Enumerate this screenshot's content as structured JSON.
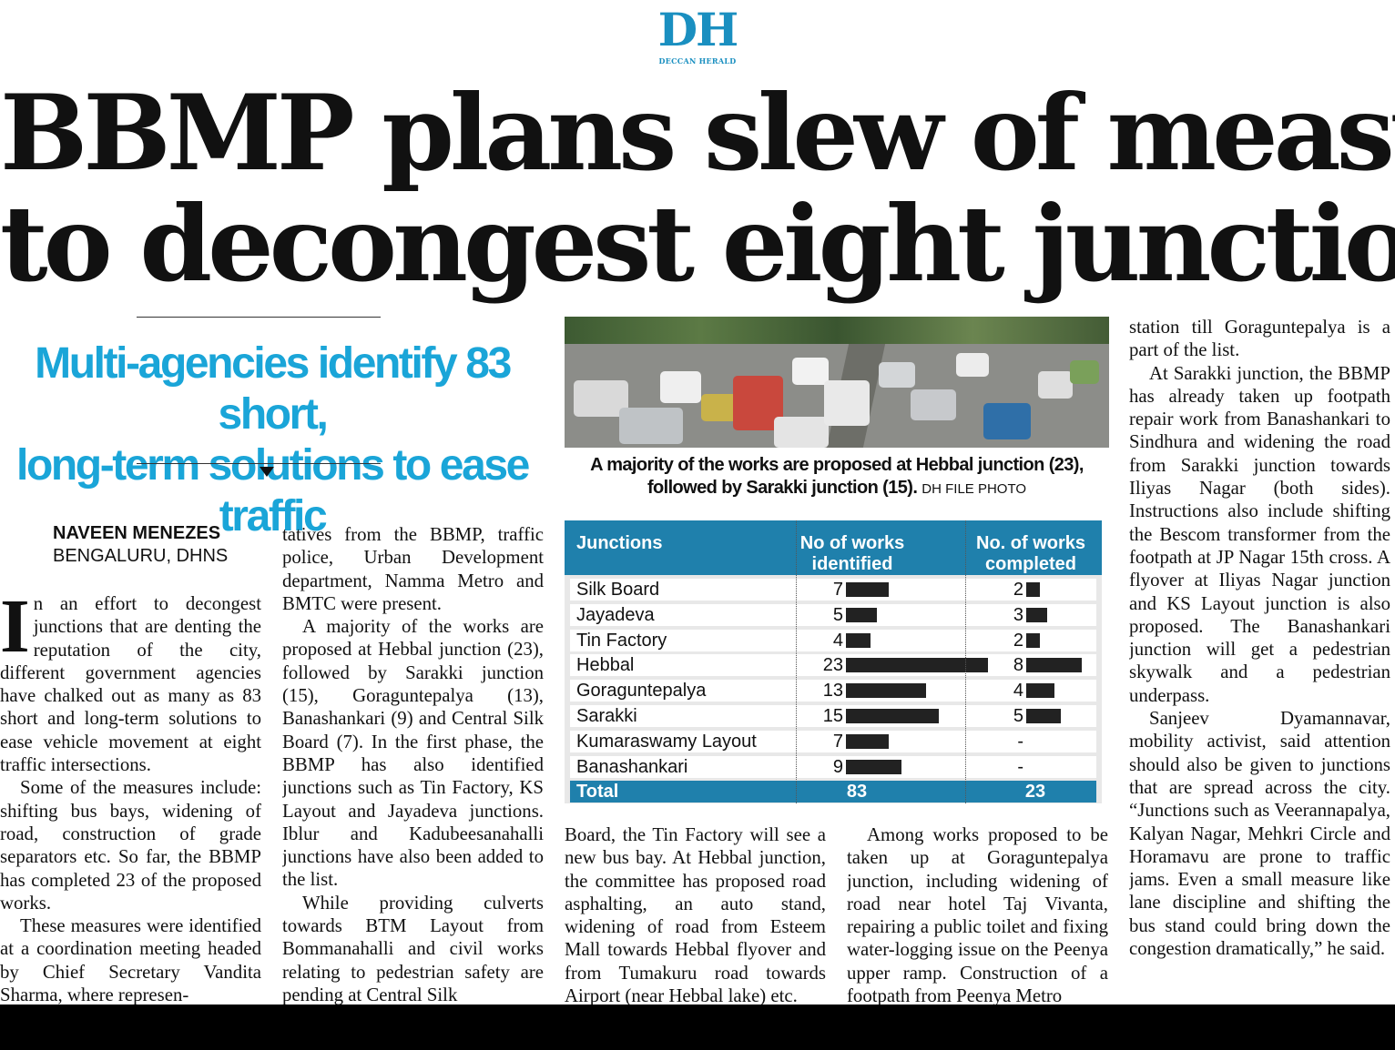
{
  "masthead": {
    "logo": "DH",
    "logo_sub": "DECCAN HERALD"
  },
  "headline": {
    "line1": "BBMP plans slew of measures",
    "line2": "to decongest eight junctions"
  },
  "subhead": {
    "line1": "Multi-agencies identify 83 short,",
    "line2": "long-term solutions to ease traffic"
  },
  "photo": {
    "caption_line1": "A majority of the works are proposed at Hebbal junction (23),",
    "caption_line2": "followed by Sarakki junction (15).",
    "credit": "DH FILE PHOTO"
  },
  "byline": {
    "name": "NAVEEN MENEZES",
    "place": "BENGALURU, DHNS"
  },
  "article": {
    "col1": {
      "dropcap": "I",
      "p1": "n an effort to decongest junctions that are denting the reputation of the city, different government agencies have chalked out as many as 83 short and long-term solutions to ease vehicle movement at eight traffic intersections.",
      "p2": "Some of the measures include: shifting bus bays, widening of road, construction of grade separators etc. So far, the BBMP has completed 23 of the proposed works.",
      "p3": "These measures were identified at a coordination meeting headed by Chief Secretary Vandita Sharma, where represen-"
    },
    "col2": {
      "p1": "tatives from the BBMP, traffic police, Urban Development department, Namma Metro and BMTC were present.",
      "p2": "A majority of the works are proposed at Hebbal junction (23), followed by Sarakki junction (15), Goraguntepalya (13), Banashankari (9) and Central Silk Board (7). In the first phase, the BBMP has also identified junctions such as Tin Factory, KS Layout and Jayadeva junctions. Iblur and Kadubeesanahalli junctions have also been added to the list.",
      "p3": "While providing culverts towards BTM Layout from Bommanahalli and civil works relating to pedestrian safety are pending at Central Silk"
    },
    "col3": {
      "p1": "Board, the Tin Factory will see a new bus bay. At Hebbal junction, the committee has proposed road asphalting, an auto stand, widening of road from Esteem Mall towards Hebbal flyover and from Tumakuru road towards Airport (near Hebbal lake) etc."
    },
    "col4": {
      "p1": "Among works proposed to be taken up at Goraguntepalya junction, including widening of road near hotel Taj Vivanta, repairing a public toilet and fixing water-logging issue on the Peenya upper ramp. Construction of a footpath from Peenya Metro"
    },
    "col5": {
      "p1": "station till Goraguntepalya is a part of the list.",
      "p2": "At Sarakki junction, the BBMP has already taken up footpath repair work from Banashankari to Sindhura and widening the road from Sarakki junction towards Iliyas Nagar (both sides). Instructions also include shifting the Bescom transformer from the footpath at JP Nagar 15th cross. A flyover at Iliyas Nagar junction and KS Layout junction is also proposed. The Banashankari junction will get a pedestrian skywalk and a pedestrian underpass.",
      "p3": "Sanjeev Dyamannavar, mobility activist, said attention should also be given to junctions that are spread across the city. “Junctions such as Veerannapalya, Kalyan Nagar, Mehkri Circle and Horamavu are prone to traffic jams. Even a small measure like lane discipline and shifting the bus stand could bring down the congestion dramatically,” he said."
    }
  },
  "table": {
    "headers": {
      "junctions": "Junctions",
      "identified_l1": "No of works",
      "identified_l2": "identified",
      "completed_l1": "No. of works",
      "completed_l2": "completed"
    },
    "rows": [
      {
        "name": "Silk Board",
        "identified": "7",
        "completed": "2"
      },
      {
        "name": "Jayadeva",
        "identified": "5",
        "completed": "3"
      },
      {
        "name": "Tin Factory",
        "identified": "4",
        "completed": "2"
      },
      {
        "name": "Hebbal",
        "identified": "23",
        "completed": "8"
      },
      {
        "name": "Goraguntepalya",
        "identified": "13",
        "completed": "4"
      },
      {
        "name": "Sarakki",
        "identified": "15",
        "completed": "5"
      },
      {
        "name": "Kumaraswamy Layout",
        "identified": "7",
        "completed": "-"
      },
      {
        "name": "Banashankari",
        "identified": "9",
        "completed": "-"
      }
    ],
    "total": {
      "label": "Total",
      "identified": "83",
      "completed": "23"
    }
  },
  "colors": {
    "accent": "#1aa5d8",
    "table_header": "#1f80ac"
  }
}
